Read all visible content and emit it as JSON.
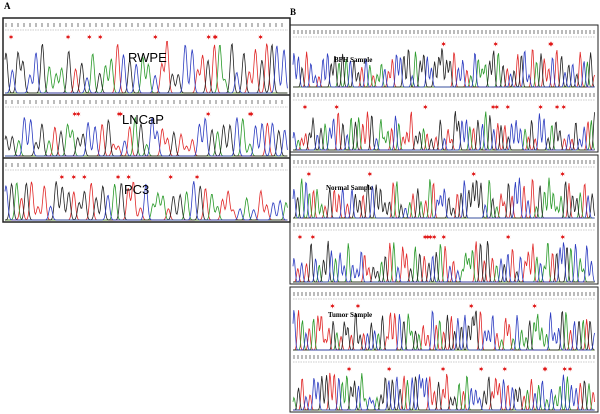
{
  "panel_a": {
    "label": "A",
    "samples": [
      "RWPE",
      "LNCaP",
      "PC3"
    ]
  },
  "panel_b": {
    "label": "B",
    "samples": [
      "BPH Sample",
      "Normal Sample",
      "Tumor Sample"
    ]
  }
}
